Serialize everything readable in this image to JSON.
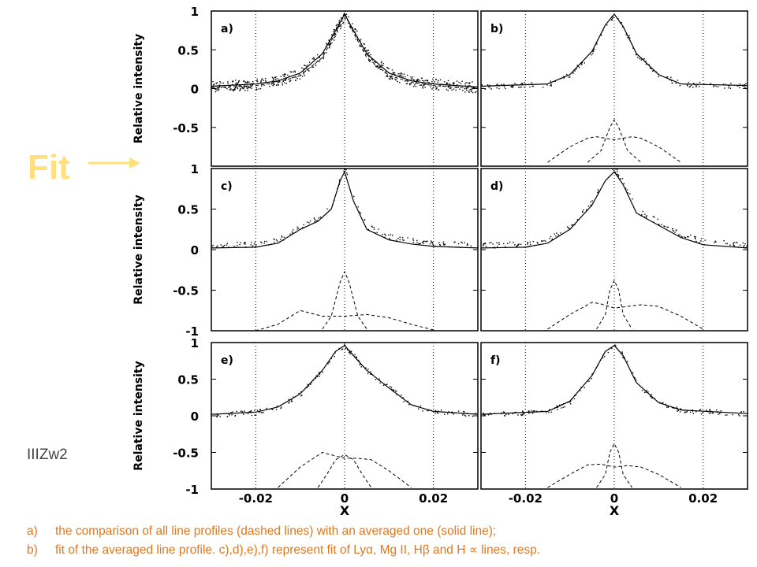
{
  "fit_label": "Fit",
  "object_label": "IIIZw2",
  "caption": [
    {
      "marker": "a)",
      "text": "the comparison of all line profiles (dashed lines) with an averaged one (solid line);"
    },
    {
      "marker": "b)",
      "text": "fit of the averaged line profile. c),d),e),f) represent fit of Lyα, Mg II, Hβ and H ∝ lines, resp."
    }
  ],
  "colors": {
    "fit_label": "#ffe07a",
    "caption": "#e07820",
    "lines": "#000000"
  },
  "chart_data": [
    {
      "panel": "a)",
      "type": "line",
      "ylabel": "Relative intensity",
      "xlim": [
        -0.03,
        0.03
      ],
      "ylim": [
        -1,
        1
      ],
      "yticks": [
        "1",
        "0.5",
        "0",
        "-0.5"
      ],
      "xticks": [],
      "series": [
        {
          "style": "solid",
          "x": [
            -0.03,
            -0.02,
            -0.015,
            -0.01,
            -0.005,
            -0.002,
            0,
            0.002,
            0.005,
            0.01,
            0.015,
            0.02,
            0.03
          ],
          "y": [
            0.03,
            0.06,
            0.1,
            0.2,
            0.45,
            0.75,
            0.96,
            0.75,
            0.45,
            0.2,
            0.1,
            0.06,
            0.02
          ]
        },
        {
          "style": "dashed",
          "x": [
            -0.03,
            -0.02,
            -0.015,
            -0.01,
            -0.005,
            -0.002,
            0,
            0.002,
            0.005,
            0.01,
            0.015,
            0.02,
            0.03
          ],
          "y": [
            0.01,
            0.04,
            0.08,
            0.17,
            0.4,
            0.72,
            0.98,
            0.72,
            0.4,
            0.17,
            0.08,
            0.04,
            0.0
          ]
        }
      ]
    },
    {
      "panel": "b)",
      "type": "line",
      "xlim": [
        -0.03,
        0.03
      ],
      "ylim": [
        -1,
        1
      ],
      "yticks": [],
      "xticks": [],
      "series": [
        {
          "style": "solid",
          "x": [
            -0.03,
            -0.015,
            -0.01,
            -0.005,
            -0.002,
            0,
            0.002,
            0.005,
            0.01,
            0.015,
            0.03
          ],
          "y": [
            0.03,
            0.06,
            0.18,
            0.48,
            0.82,
            0.96,
            0.8,
            0.45,
            0.18,
            0.06,
            0.04
          ]
        },
        {
          "style": "dashed",
          "x": [
            -0.015,
            -0.01,
            -0.006,
            -0.004,
            -0.002,
            0,
            0.002,
            0.004,
            0.006,
            0.01,
            0.015
          ],
          "y": [
            -0.95,
            -0.75,
            -0.64,
            -0.62,
            -0.64,
            -0.66,
            -0.64,
            -0.62,
            -0.64,
            -0.75,
            -0.95
          ]
        },
        {
          "style": "dashed",
          "x": [
            -0.006,
            -0.003,
            -0.001,
            0,
            0.001,
            0.003,
            0.006
          ],
          "y": [
            -0.95,
            -0.8,
            -0.5,
            -0.4,
            -0.5,
            -0.8,
            -0.95
          ]
        }
      ]
    },
    {
      "panel": "c)",
      "type": "line",
      "ylabel": "Relative intensity",
      "xlim": [
        -0.03,
        0.03
      ],
      "ylim": [
        -1,
        1
      ],
      "yticks": [
        "1",
        "0.5",
        "0",
        "-0.5",
        "-1"
      ],
      "xticks": [],
      "series": [
        {
          "style": "solid",
          "x": [
            -0.03,
            -0.02,
            -0.015,
            -0.01,
            -0.006,
            -0.003,
            -0.001,
            0,
            0.002,
            0.005,
            0.01,
            0.015,
            0.02,
            0.03
          ],
          "y": [
            0.02,
            0.03,
            0.08,
            0.25,
            0.35,
            0.5,
            0.85,
            0.96,
            0.6,
            0.25,
            0.12,
            0.07,
            0.04,
            0.02
          ]
        },
        {
          "style": "dashed",
          "x": [
            -0.02,
            -0.015,
            -0.01,
            -0.005,
            0,
            0.005,
            0.01,
            0.015,
            0.02
          ],
          "y": [
            -1.0,
            -0.92,
            -0.75,
            -0.82,
            -0.82,
            -0.8,
            -0.84,
            -0.92,
            -0.99
          ]
        },
        {
          "style": "dashed",
          "x": [
            -0.005,
            -0.003,
            -0.001,
            0,
            0.001,
            0.003,
            0.005
          ],
          "y": [
            -0.98,
            -0.82,
            -0.4,
            -0.27,
            -0.4,
            -0.82,
            -0.98
          ]
        }
      ]
    },
    {
      "panel": "d)",
      "type": "line",
      "xlim": [
        -0.03,
        0.03
      ],
      "ylim": [
        -1,
        1
      ],
      "yticks": [],
      "xticks": [],
      "series": [
        {
          "style": "solid",
          "x": [
            -0.03,
            -0.02,
            -0.015,
            -0.01,
            -0.005,
            -0.002,
            0,
            0.002,
            0.005,
            0.01,
            0.015,
            0.02,
            0.03
          ],
          "y": [
            0.02,
            0.03,
            0.08,
            0.25,
            0.55,
            0.85,
            0.96,
            0.8,
            0.45,
            0.3,
            0.15,
            0.06,
            0.02
          ]
        },
        {
          "style": "dashed",
          "x": [
            -0.015,
            -0.01,
            -0.005,
            -0.003,
            0,
            0.003,
            0.006,
            0.01,
            0.015,
            0.02
          ],
          "y": [
            -0.98,
            -0.8,
            -0.65,
            -0.67,
            -0.72,
            -0.7,
            -0.68,
            -0.7,
            -0.82,
            -0.98
          ]
        },
        {
          "style": "dashed",
          "x": [
            -0.004,
            -0.002,
            -0.001,
            0,
            0.001,
            0.002,
            0.004
          ],
          "y": [
            -0.98,
            -0.8,
            -0.5,
            -0.38,
            -0.5,
            -0.8,
            -0.98
          ]
        }
      ]
    },
    {
      "panel": "e)",
      "type": "line",
      "ylabel": "Relative intensity",
      "xlim": [
        -0.03,
        0.03
      ],
      "ylim": [
        -1,
        1
      ],
      "yticks": [
        "1",
        "0.5",
        "0",
        "-0.5",
        "-1"
      ],
      "xticks": [
        "-0.02",
        "0",
        "0.02"
      ],
      "xlabel": "X",
      "series": [
        {
          "style": "solid",
          "x": [
            -0.03,
            -0.02,
            -0.015,
            -0.01,
            -0.005,
            -0.002,
            0,
            0.002,
            0.005,
            0.01,
            0.015,
            0.02,
            0.03
          ],
          "y": [
            0.02,
            0.05,
            0.12,
            0.3,
            0.62,
            0.88,
            0.96,
            0.82,
            0.62,
            0.38,
            0.15,
            0.06,
            0.02
          ]
        },
        {
          "style": "dashed",
          "x": [
            -0.015,
            -0.01,
            -0.005,
            -0.002,
            0,
            0.003,
            0.006,
            0.01,
            0.015
          ],
          "y": [
            -0.98,
            -0.7,
            -0.5,
            -0.55,
            -0.58,
            -0.58,
            -0.6,
            -0.75,
            -0.98
          ]
        },
        {
          "style": "dashed",
          "x": [
            -0.006,
            -0.004,
            -0.002,
            0,
            0.002,
            0.004,
            0.006
          ],
          "y": [
            -0.98,
            -0.8,
            -0.6,
            -0.53,
            -0.6,
            -0.8,
            -0.98
          ]
        }
      ]
    },
    {
      "panel": "f)",
      "type": "line",
      "xlim": [
        -0.03,
        0.03
      ],
      "ylim": [
        -1,
        1
      ],
      "yticks": [],
      "xticks": [
        "-0.02",
        "0",
        "0.02"
      ],
      "xlabel": "X",
      "series": [
        {
          "style": "solid",
          "x": [
            -0.03,
            -0.015,
            -0.01,
            -0.005,
            -0.002,
            0,
            0.002,
            0.005,
            0.01,
            0.015,
            0.03
          ],
          "y": [
            0.02,
            0.06,
            0.2,
            0.55,
            0.88,
            0.96,
            0.82,
            0.45,
            0.18,
            0.08,
            0.03
          ]
        },
        {
          "style": "dashed",
          "x": [
            -0.015,
            -0.01,
            -0.006,
            -0.003,
            0,
            0.003,
            0.006,
            0.01,
            0.015
          ],
          "y": [
            -0.98,
            -0.8,
            -0.67,
            -0.66,
            -0.7,
            -0.68,
            -0.7,
            -0.8,
            -0.98
          ]
        },
        {
          "style": "dashed",
          "x": [
            -0.004,
            -0.002,
            -0.001,
            0,
            0.001,
            0.002,
            0.004
          ],
          "y": [
            -0.98,
            -0.8,
            -0.5,
            -0.38,
            -0.5,
            -0.8,
            -0.98
          ]
        }
      ]
    }
  ]
}
